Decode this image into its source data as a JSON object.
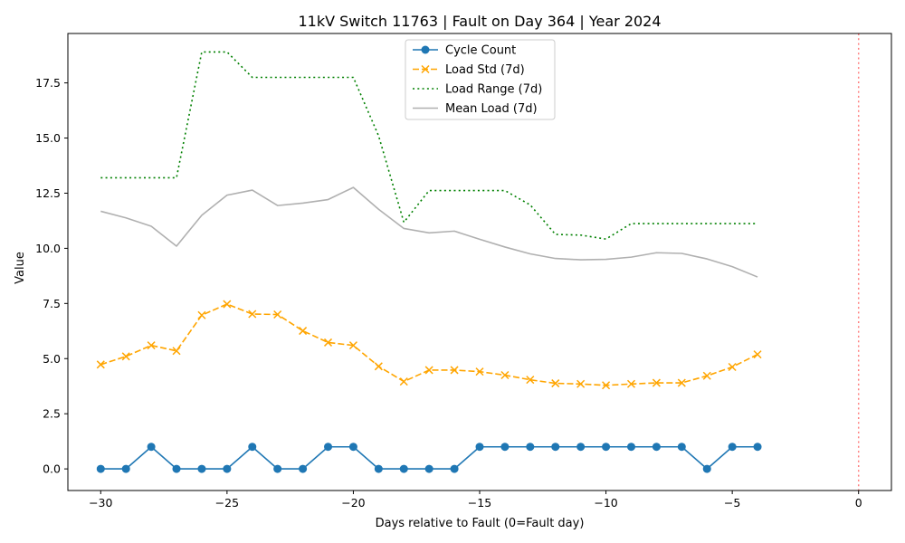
{
  "chart_data": {
    "type": "line",
    "title": "11kV Switch 11763 | Fault on Day 364 | Year 2024",
    "xlabel": "Days relative to Fault (0=Fault day)",
    "ylabel": "Value",
    "xlim": [
      -31.3,
      1.3
    ],
    "ylim": [
      -0.98,
      19.74
    ],
    "grid": false,
    "legend_position": "top-center",
    "x_ticks": [
      -30,
      -25,
      -20,
      -15,
      -10,
      -5,
      0
    ],
    "x_tick_labels": [
      "−30",
      "−25",
      "−20",
      "−15",
      "−10",
      "−5",
      "0"
    ],
    "y_ticks": [
      0,
      2.5,
      5,
      7.5,
      10,
      12.5,
      15,
      17.5
    ],
    "y_tick_labels": [
      "0.0",
      "2.5",
      "5.0",
      "7.5",
      "10.0",
      "12.5",
      "15.0",
      "17.5"
    ],
    "x": [
      -30,
      -29,
      -28,
      -27,
      -26,
      -25,
      -24,
      -23,
      -22,
      -21,
      -20,
      -19,
      -18,
      -17,
      -16,
      -15,
      -14,
      -13,
      -12,
      -11,
      -10,
      -9,
      -8,
      -7,
      -6,
      -5,
      -4
    ],
    "series": [
      {
        "name": "Cycle Count",
        "color": "#1f77b4",
        "style": "solid",
        "marker": "circle",
        "values": [
          0,
          0,
          1,
          0,
          0,
          0,
          1,
          0,
          0,
          1,
          1,
          0,
          0,
          0,
          0,
          1,
          1,
          1,
          1,
          1,
          1,
          1,
          1,
          1,
          0,
          1,
          1
        ]
      },
      {
        "name": "Load Std (7d)",
        "color": "#ffa500",
        "style": "dashed",
        "marker": "x",
        "values": [
          4.73,
          5.1,
          5.6,
          5.35,
          6.97,
          7.47,
          7.02,
          7.0,
          6.26,
          5.73,
          5.6,
          4.65,
          3.96,
          4.48,
          4.48,
          4.41,
          4.25,
          4.04,
          3.88,
          3.85,
          3.79,
          3.85,
          3.9,
          3.9,
          4.22,
          4.62,
          5.19
        ]
      },
      {
        "name": "Load Range (7d)",
        "color": "#008000",
        "style": "dotted",
        "marker": "none",
        "values": [
          13.2,
          13.2,
          13.2,
          13.2,
          18.9,
          18.9,
          17.75,
          17.75,
          17.75,
          17.75,
          17.75,
          15.1,
          11.18,
          12.62,
          12.62,
          12.62,
          12.62,
          11.97,
          10.63,
          10.6,
          10.42,
          11.12,
          11.12,
          11.12,
          11.12,
          11.12,
          11.12
        ]
      },
      {
        "name": "Mean Load (7d)",
        "color": "#b0b0b0",
        "style": "solid",
        "marker": "none",
        "values": [
          11.68,
          11.38,
          11.0,
          10.1,
          11.5,
          12.41,
          12.64,
          11.94,
          12.05,
          12.21,
          12.76,
          11.77,
          10.9,
          10.7,
          10.78,
          10.41,
          10.06,
          9.75,
          9.54,
          9.48,
          9.5,
          9.6,
          9.8,
          9.77,
          9.52,
          9.17,
          8.7
        ]
      }
    ],
    "vertical_line": {
      "x": 0,
      "color": "#ff7f7f",
      "style": "dotted"
    }
  }
}
